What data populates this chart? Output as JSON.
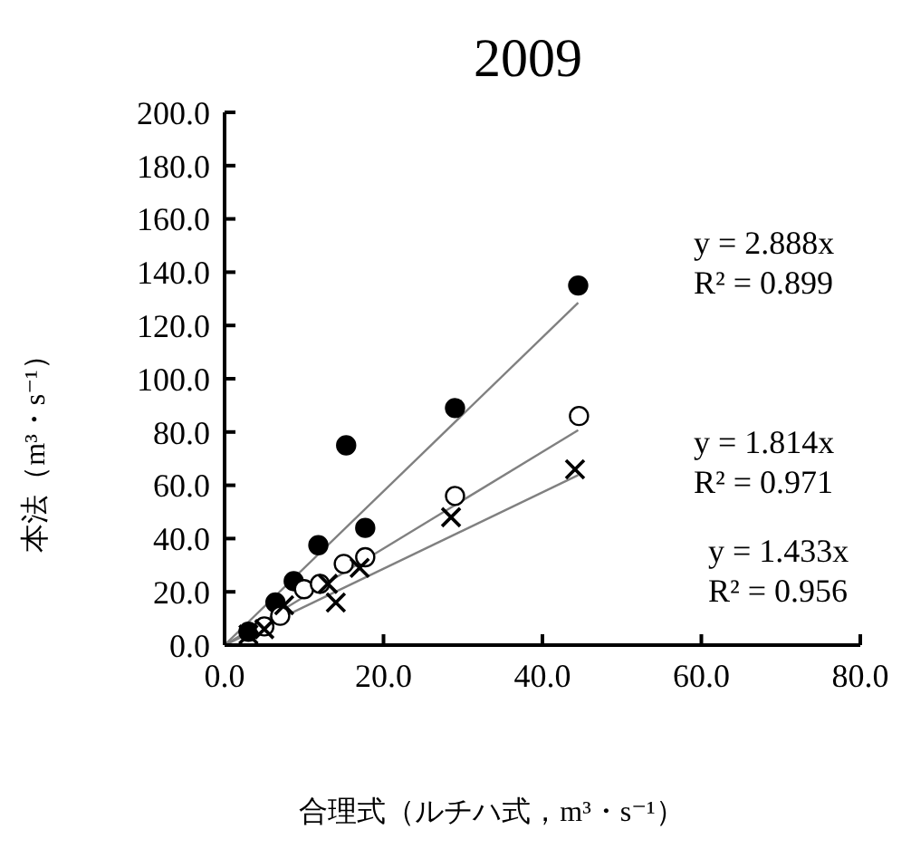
{
  "chart_data": {
    "type": "scatter",
    "title": "2009",
    "xlabel": "合理式（ルチハ式，m³・s⁻¹）",
    "ylabel": "本法（m³・s⁻¹）",
    "xlim": [
      0,
      80
    ],
    "xticks": [
      {
        "value": 0,
        "label": "0.0"
      },
      {
        "value": 20,
        "label": "20.0"
      },
      {
        "value": 40,
        "label": "40.0"
      },
      {
        "value": 60,
        "label": "60.0"
      },
      {
        "value": 80,
        "label": "80.0"
      }
    ],
    "ylim": [
      0,
      200
    ],
    "yticks": [
      {
        "value": 0,
        "label": "0.0"
      },
      {
        "value": 20,
        "label": "20.0"
      },
      {
        "value": 40,
        "label": "40.0"
      },
      {
        "value": 60,
        "label": "60.0"
      },
      {
        "value": 80,
        "label": "80.0"
      },
      {
        "value": 100,
        "label": "100.0"
      },
      {
        "value": 120,
        "label": "120.0"
      },
      {
        "value": 140,
        "label": "140.0"
      },
      {
        "value": 160,
        "label": "160.0"
      },
      {
        "value": 180,
        "label": "180.0"
      },
      {
        "value": 200,
        "label": "200.0"
      }
    ],
    "grid": false,
    "annotations": [
      "y = 2.888x\nR² = 0.899",
      "y = 1.814x\nR² = 0.971",
      "y = 1.433x\nR² = 0.956"
    ],
    "series": [
      {
        "marker": "circle",
        "color": "#000000",
        "x": [
          3,
          5,
          6.4,
          8.7,
          11.8,
          15.3,
          17.7,
          29,
          44.5
        ],
        "values": [
          5,
          null,
          16,
          24,
          37.5,
          75,
          44,
          89,
          135
        ]
      },
      {
        "marker": "circle",
        "color": "#ffffff",
        "x": [
          5,
          7,
          10,
          12,
          15,
          17.7,
          29,
          44.6
        ],
        "values": [
          7,
          11,
          21,
          23,
          30.5,
          33,
          56,
          86
        ]
      },
      {
        "marker": "cross",
        "color": "#000000",
        "x": [
          3,
          5,
          7.5,
          13,
          14,
          17,
          28.5,
          44.1
        ],
        "values": [
          4,
          6,
          15,
          23,
          16,
          29,
          48,
          66
        ]
      },
      {
        "type": "line",
        "color": "#808080",
        "x": [
          0,
          44.5
        ],
        "values": [
          0,
          128.5
        ]
      },
      {
        "type": "line",
        "color": "#808080",
        "x": [
          0,
          44.5
        ],
        "values": [
          0,
          80.7
        ]
      },
      {
        "type": "line",
        "color": "#808080",
        "x": [
          0,
          44.5
        ],
        "values": [
          0,
          63.8
        ]
      }
    ]
  }
}
